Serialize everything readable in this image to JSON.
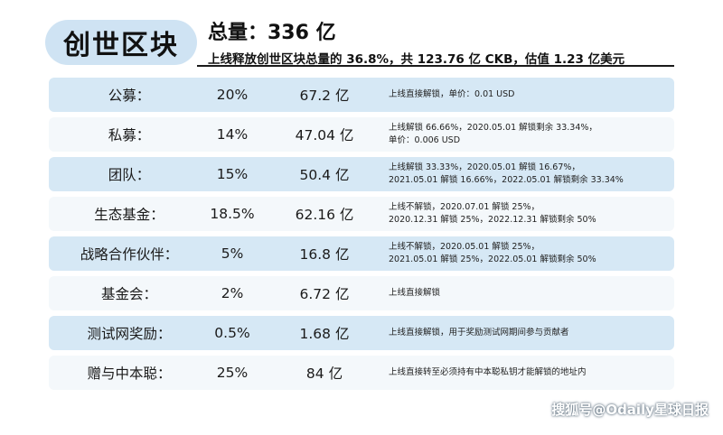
{
  "title": "创世区块",
  "total": "总量：336 亿",
  "subline": "上线释放创世区块总量的 36.8%，共 123.76 亿 CKB，估值 1.23 亿美元",
  "rows": [
    {
      "name": "公募：",
      "pct": "20%",
      "amount": "67.2 亿",
      "note": "上线直接解锁，单价：0.01 USD"
    },
    {
      "name": "私募：",
      "pct": "14%",
      "amount": "47.04 亿",
      "note": "上线解锁 66.66%，2020.05.01 解锁剩余 33.34%，\n单价：0.006 USD"
    },
    {
      "name": "团队：",
      "pct": "15%",
      "amount": "50.4 亿",
      "note": "上线解锁 33.33%，2020.05.01 解锁 16.67%，\n2021.05.01 解锁 16.66%，2022.05.01 解锁剩余 33.34%"
    },
    {
      "name": "生态基金：",
      "pct": "18.5%",
      "amount": "62.16 亿",
      "note": "上线不解锁，2020.07.01 解锁 25%，\n2020.12.31 解锁 25%，2022.12.31 解锁剩余 50%"
    },
    {
      "name": "战略合作伙伴：",
      "pct": "5%",
      "amount": "16.8 亿",
      "note": "上线不解锁，2020.05.01 解锁 25%，\n2021.05.01 解锁 25%，2022.05.01 解锁剩余 50%"
    },
    {
      "name": "基金会：",
      "pct": "2%",
      "amount": "6.72 亿",
      "note": "上线直接解锁"
    },
    {
      "name": "测试网奖励：",
      "pct": "0.5%",
      "amount": "1.68 亿",
      "note": "上线直接解锁，用于奖励测试网期间参与贡献者"
    },
    {
      "name": "赠与中本聪：",
      "pct": "25%",
      "amount": "84 亿",
      "note": "上线直接转至必须持有中本聪私钥才能解锁的地址内"
    }
  ],
  "watermark": "搜狐号@Odaily星球日报"
}
